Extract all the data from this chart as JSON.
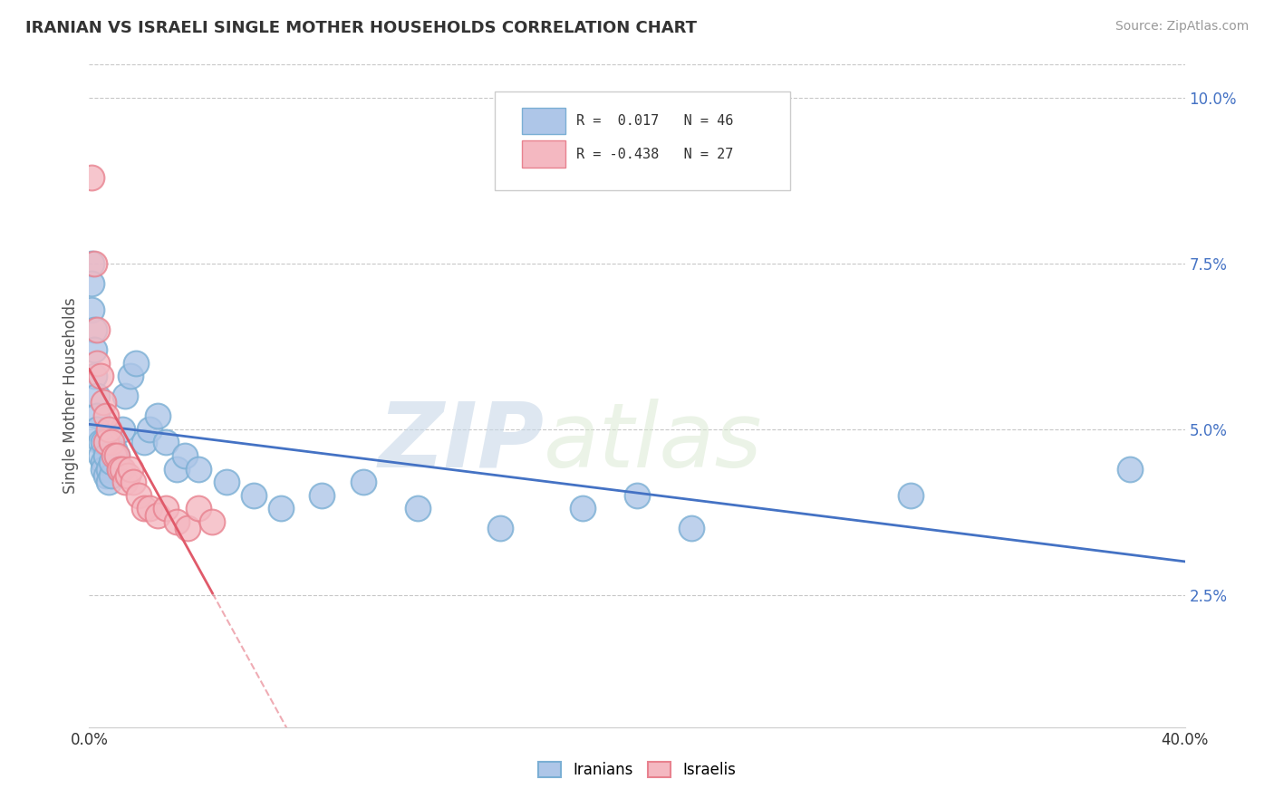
{
  "title": "IRANIAN VS ISRAELI SINGLE MOTHER HOUSEHOLDS CORRELATION CHART",
  "source": "Source: ZipAtlas.com",
  "ylabel": "Single Mother Households",
  "x_min": 0.0,
  "x_max": 0.4,
  "y_min": 0.005,
  "y_max": 0.105,
  "x_ticks": [
    0.0,
    0.1,
    0.2,
    0.3,
    0.4
  ],
  "x_tick_labels": [
    "0.0%",
    "",
    "",
    "",
    "40.0%"
  ],
  "y_ticks": [
    0.025,
    0.05,
    0.075,
    0.1
  ],
  "y_tick_labels": [
    "2.5%",
    "5.0%",
    "7.5%",
    "10.0%"
  ],
  "iranians_color": "#aec6e8",
  "israelis_color": "#f4b8c1",
  "iranians_edge": "#7bafd4",
  "israelis_edge": "#e8828f",
  "trendline_iranian_color": "#4472c4",
  "trendline_israeli_color": "#e05a6a",
  "watermark_zip": "ZIP",
  "watermark_atlas": "atlas",
  "background_color": "#ffffff",
  "grid_color": "#c8c8c8",
  "legend_label1": "R =  0.017   N = 46",
  "legend_label2": "R = -0.438   N = 27",
  "bottom_legend_iranians": "Iranians",
  "bottom_legend_israelis": "Israelis",
  "iranians_x": [
    0.001,
    0.001,
    0.001,
    0.002,
    0.002,
    0.002,
    0.003,
    0.003,
    0.003,
    0.004,
    0.004,
    0.005,
    0.005,
    0.005,
    0.006,
    0.006,
    0.007,
    0.007,
    0.008,
    0.008,
    0.009,
    0.01,
    0.011,
    0.012,
    0.013,
    0.015,
    0.017,
    0.02,
    0.022,
    0.025,
    0.028,
    0.032,
    0.035,
    0.04,
    0.05,
    0.06,
    0.07,
    0.085,
    0.1,
    0.12,
    0.15,
    0.18,
    0.2,
    0.22,
    0.3,
    0.38
  ],
  "iranians_y": [
    0.075,
    0.072,
    0.068,
    0.065,
    0.062,
    0.058,
    0.055,
    0.052,
    0.05,
    0.048,
    0.046,
    0.045,
    0.048,
    0.044,
    0.046,
    0.043,
    0.044,
    0.042,
    0.043,
    0.045,
    0.047,
    0.046,
    0.044,
    0.05,
    0.055,
    0.058,
    0.06,
    0.048,
    0.05,
    0.052,
    0.048,
    0.044,
    0.046,
    0.044,
    0.042,
    0.04,
    0.038,
    0.04,
    0.042,
    0.038,
    0.035,
    0.038,
    0.04,
    0.035,
    0.04,
    0.044
  ],
  "israelis_x": [
    0.001,
    0.002,
    0.003,
    0.003,
    0.004,
    0.005,
    0.006,
    0.006,
    0.007,
    0.008,
    0.009,
    0.01,
    0.011,
    0.012,
    0.013,
    0.014,
    0.015,
    0.016,
    0.018,
    0.02,
    0.022,
    0.025,
    0.028,
    0.032,
    0.036,
    0.04,
    0.045
  ],
  "israelis_y": [
    0.088,
    0.075,
    0.065,
    0.06,
    0.058,
    0.054,
    0.052,
    0.048,
    0.05,
    0.048,
    0.046,
    0.046,
    0.044,
    0.044,
    0.042,
    0.043,
    0.044,
    0.042,
    0.04,
    0.038,
    0.038,
    0.037,
    0.038,
    0.036,
    0.035,
    0.038,
    0.036
  ]
}
